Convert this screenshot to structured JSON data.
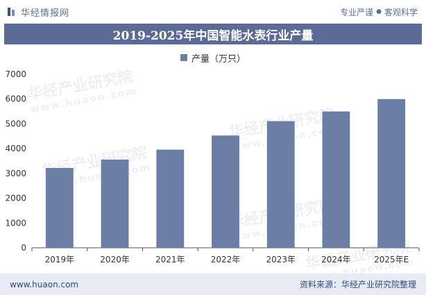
{
  "header": {
    "brand": "华经情报网",
    "slogan_left": "专业严谨",
    "slogan_sep": "●",
    "slogan_right": "客观科学"
  },
  "watermark": {
    "text": "华经产业研究院",
    "url": "www.huaon.com"
  },
  "footer": {
    "url": "www.huaon.com",
    "source": "资料来源：华经产业研究院整理"
  },
  "colors": {
    "bar": "#6b7ea6",
    "title_bg": "#5c6b95",
    "axis": "#555555"
  },
  "chart_data": {
    "type": "bar",
    "title": "2019-2025年中国智能水表行业产量",
    "legend": [
      "产量（万只）"
    ],
    "categories": [
      "2019年",
      "2020年",
      "2021年",
      "2022年",
      "2023年",
      "2024年",
      "2025年E"
    ],
    "series": [
      {
        "name": "产量（万只）",
        "values": [
          3220,
          3560,
          3960,
          4530,
          5110,
          5500,
          6000
        ]
      }
    ],
    "ylim": [
      0,
      7000
    ],
    "yticks": [
      0,
      1000,
      2000,
      3000,
      4000,
      5000,
      6000,
      7000
    ],
    "xlabel": "",
    "ylabel": ""
  }
}
